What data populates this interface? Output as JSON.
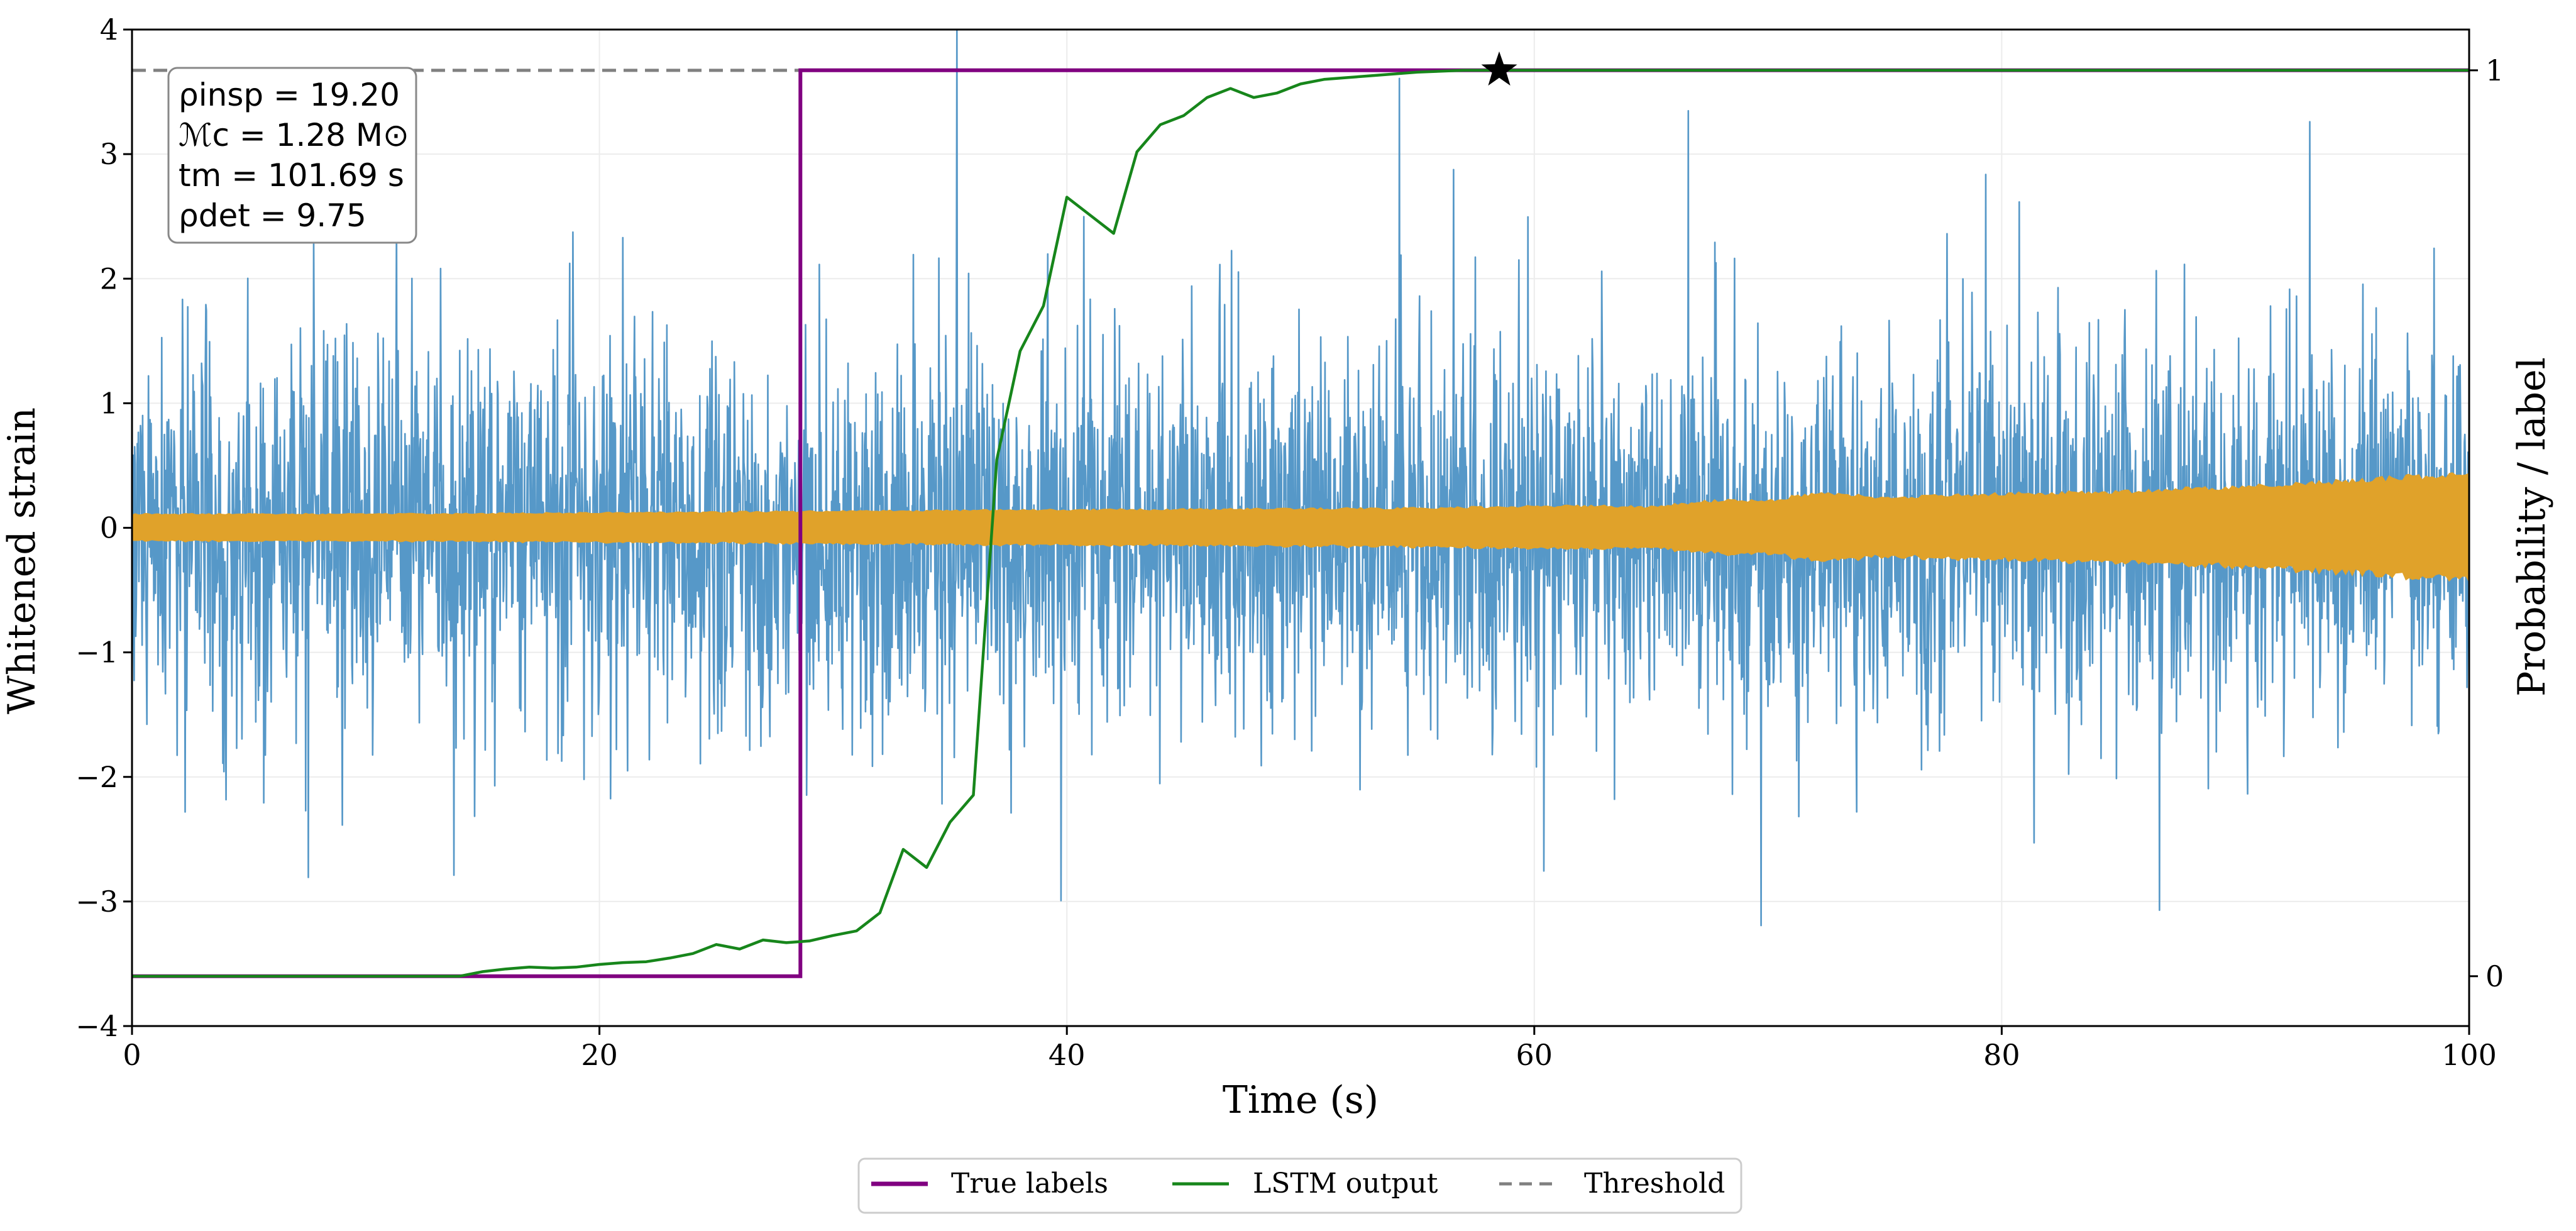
{
  "chart_data": {
    "type": "line",
    "title": "",
    "xlabel": "Time (s)",
    "ylabel": "Whitened strain",
    "ylabel_right": "Probability / label",
    "xlim": [
      0,
      100
    ],
    "ylim": [
      -4,
      4
    ],
    "ylim_right": [
      -0.055,
      1.045
    ],
    "grid": true,
    "x_ticks": [
      0,
      20,
      40,
      60,
      80,
      100
    ],
    "x_tick_labels": [
      "0",
      "20",
      "40",
      "60",
      "80",
      "100"
    ],
    "y_ticks": [
      -4,
      -3,
      -2,
      -1,
      0,
      1,
      2,
      3,
      4
    ],
    "y_tick_labels": [
      "−4",
      "−3",
      "−2",
      "−1",
      "0",
      "1",
      "2",
      "3",
      "4"
    ],
    "y_right_ticks": [
      0,
      1
    ],
    "y_right_tick_labels": [
      "0",
      "1"
    ],
    "annotation": {
      "rho_insp": "ρinsp = 19.20",
      "chirp_mass": "ℳc = 1.28 M⊙",
      "merger_time": "tm = 101.69 s",
      "rho_det": "ρdet = 9.75"
    },
    "legend": {
      "placement": "below",
      "entries": [
        "True labels",
        "LSTM output",
        "Threshold"
      ]
    },
    "series": [
      {
        "name": "Whitened strain (noise + signal)",
        "axis": "left",
        "color": "#5698c8",
        "noise_sigma": 0.75,
        "approx_range": [
          -3.8,
          4.0
        ]
      },
      {
        "name": "Injected signal",
        "axis": "left",
        "color": "#e0a22a",
        "envelope": {
          "x": [
            0,
            10,
            20,
            28,
            35,
            45,
            55,
            62,
            65,
            68,
            70,
            72,
            75,
            80,
            85,
            90,
            95,
            100
          ],
          "amplitude": [
            0.12,
            0.12,
            0.13,
            0.14,
            0.15,
            0.16,
            0.17,
            0.19,
            0.18,
            0.24,
            0.23,
            0.3,
            0.26,
            0.29,
            0.31,
            0.35,
            0.4,
            0.47
          ]
        }
      },
      {
        "name": "True labels",
        "axis": "right",
        "color": "#800080",
        "x": [
          0,
          28.6,
          28.6,
          100
        ],
        "y": [
          0,
          0,
          1,
          1
        ]
      },
      {
        "name": "LSTM output",
        "axis": "right",
        "color": "#17861b",
        "x": [
          0,
          14,
          15,
          16,
          17,
          18,
          19,
          20,
          21,
          22,
          23,
          24,
          25,
          26,
          27,
          28,
          29,
          30,
          31,
          32,
          33,
          34,
          35,
          36,
          37,
          38,
          39,
          40,
          41,
          42,
          43,
          44,
          45,
          46,
          47,
          48,
          49,
          50,
          51,
          52,
          53,
          54,
          55,
          56,
          57,
          58.5,
          59,
          100
        ],
        "y": [
          0,
          0,
          0.005,
          0.008,
          0.01,
          0.009,
          0.01,
          0.013,
          0.015,
          0.016,
          0.02,
          0.025,
          0.035,
          0.03,
          0.04,
          0.037,
          0.039,
          0.045,
          0.05,
          0.07,
          0.14,
          0.12,
          0.17,
          0.2,
          0.57,
          0.69,
          0.74,
          0.86,
          0.84,
          0.82,
          0.91,
          0.94,
          0.95,
          0.97,
          0.98,
          0.97,
          0.975,
          0.985,
          0.99,
          0.992,
          0.994,
          0.996,
          0.998,
          0.999,
          1.0,
          1.0,
          1.0,
          1.0
        ]
      },
      {
        "name": "Threshold",
        "axis": "right",
        "color": "#808080",
        "y": 1.0
      },
      {
        "name": "Detection",
        "axis": "right",
        "marker": "star",
        "x": 58.5,
        "y": 1.0
      }
    ]
  }
}
